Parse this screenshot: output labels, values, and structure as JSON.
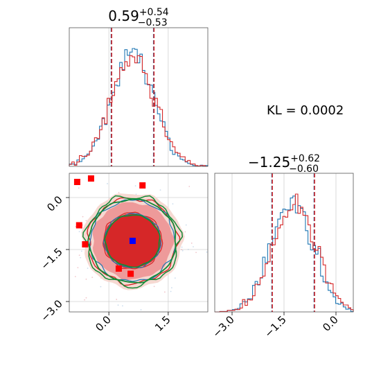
{
  "annotation": {
    "text": "KL = 0.0002"
  },
  "panels": {
    "top": {
      "title_main": "0.59",
      "title_sup": "+0.54",
      "title_sub": "−0.53"
    },
    "right": {
      "title_main": "−1.25",
      "title_sup": "+0.62",
      "title_sub": "−0.60"
    }
  },
  "colors": {
    "blue": "#1f77b4",
    "red": "#d62728",
    "green": "#138a36",
    "grid": "#d0d0d0",
    "marker_red": "#ff0000",
    "marker_blue": "#0000ff"
  },
  "chart_data": [
    {
      "type": "histogram",
      "panel": "param-1-marginal",
      "title": "0.59 +0.54 −0.53",
      "xlim": [
        -1.0,
        2.5
      ],
      "median": 0.59,
      "quantiles": [
        0.06,
        1.13
      ],
      "series": [
        {
          "color": "#1f77b4",
          "shape": "gaussian",
          "mean": 0.59,
          "sd": 0.53
        },
        {
          "color": "#d62728",
          "shape": "gaussian",
          "mean": 0.6,
          "sd": 0.55
        }
      ]
    },
    {
      "type": "histogram",
      "panel": "param-2-marginal",
      "title": "−1.25 +0.62 −0.60",
      "xlim": [
        -3.5,
        0.5
      ],
      "xticks": [
        "−3.0",
        "−1.5",
        "0.0"
      ],
      "median": -1.25,
      "quantiles": [
        -1.85,
        -0.63
      ],
      "series": [
        {
          "color": "#1f77b4",
          "shape": "gaussian",
          "mean": -1.28,
          "sd": 0.6
        },
        {
          "color": "#d62728",
          "shape": "gaussian",
          "mean": -1.2,
          "sd": 0.62
        }
      ]
    },
    {
      "type": "scatter",
      "panel": "joint-contours",
      "xlim": [
        -1.0,
        2.5
      ],
      "ylim": [
        -3.3,
        0.7
      ],
      "xticks": [
        "0.0",
        "1.5"
      ],
      "yticks": [
        "0.0",
        "−1.5",
        "−3.0"
      ],
      "contours": {
        "center": [
          0.6,
          -1.25
        ],
        "red_filled_sd": [
          0.55,
          0.6
        ],
        "green_levels": [
          1,
          2
        ],
        "blue_levels": [
          1,
          2
        ]
      },
      "red_markers": [
        {
          "x": -0.8,
          "y": 0.45
        },
        {
          "x": -0.45,
          "y": 0.55
        },
        {
          "x": 0.85,
          "y": 0.35
        },
        {
          "x": -0.75,
          "y": -0.8
        },
        {
          "x": -0.6,
          "y": -1.35
        },
        {
          "x": 0.25,
          "y": -2.05
        },
        {
          "x": 0.55,
          "y": -2.2
        }
      ],
      "blue_marker": {
        "x": 0.6,
        "y": -1.25
      }
    }
  ]
}
